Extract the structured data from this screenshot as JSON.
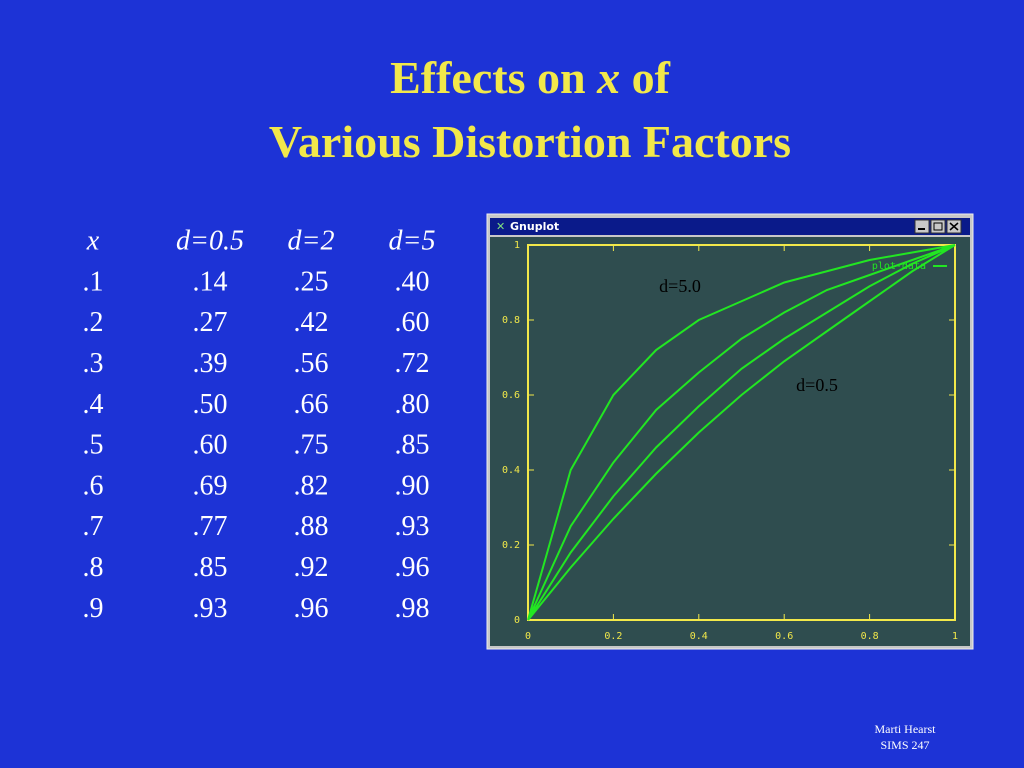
{
  "slide": {
    "title": {
      "line1": [
        "Effects on",
        "x",
        "of"
      ],
      "line2": "Various Distortion Factors"
    },
    "table": {
      "header": [
        "x",
        "d=0.5",
        "d=2",
        "d=5"
      ],
      "rows": [
        [
          ".1",
          ".14",
          ".25",
          ".40"
        ],
        [
          ".2",
          ".27",
          ".42",
          ".60"
        ],
        [
          ".3",
          ".39",
          ".56",
          ".72"
        ],
        [
          ".4",
          ".50",
          ".66",
          ".80"
        ],
        [
          ".5",
          ".60",
          ".75",
          ".85"
        ],
        [
          ".6",
          ".69",
          ".82",
          ".90"
        ],
        [
          ".7",
          ".77",
          ".88",
          ".93"
        ],
        [
          ".8",
          ".85",
          ".92",
          ".96"
        ],
        [
          ".9",
          ".93",
          ".96",
          ".98"
        ]
      ]
    },
    "window_title": "Gnuplot",
    "footer": [
      "Marti Hearst",
      "SIMS 247"
    ]
  },
  "chart_data": {
    "type": "line",
    "x": [
      0,
      0.1,
      0.2,
      0.3,
      0.4,
      0.5,
      0.6,
      0.7,
      0.8,
      0.9,
      1,
      null,
      0,
      0.1,
      0.2,
      0.3,
      0.4,
      0.5,
      0.6,
      0.7,
      0.8,
      0.9,
      1,
      null,
      0,
      0.1,
      0.2,
      0.3,
      0.4,
      0.5,
      0.6,
      0.7,
      0.8,
      0.9,
      1,
      null,
      0,
      0.1,
      0.2,
      0.3,
      0.4,
      0.5,
      0.6,
      0.7,
      0.8,
      0.9,
      1
    ],
    "series": [
      {
        "name": "plot-data",
        "color": "#22e622",
        "values": [
          0,
          0.14,
          0.27,
          0.39,
          0.5,
          0.6,
          0.69,
          0.77,
          0.85,
          0.93,
          1,
          null,
          0,
          0.18,
          0.33,
          0.46,
          0.57,
          0.67,
          0.75,
          0.82,
          0.89,
          0.95,
          1,
          null,
          0,
          0.25,
          0.42,
          0.56,
          0.66,
          0.75,
          0.82,
          0.88,
          0.92,
          0.96,
          1,
          null,
          0,
          0.4,
          0.6,
          0.72,
          0.8,
          0.85,
          0.9,
          0.93,
          0.96,
          0.98,
          1
        ]
      }
    ],
    "annotations": [
      "d=5.0",
      "d=0.5"
    ],
    "xlim": [
      0,
      1
    ],
    "ylim": [
      0,
      1
    ],
    "xticks": [
      0,
      0.2,
      0.4,
      0.6,
      0.8,
      1
    ],
    "yticks": [
      0,
      0.2,
      0.4,
      0.6,
      0.8,
      1
    ],
    "legend": "top-right"
  }
}
